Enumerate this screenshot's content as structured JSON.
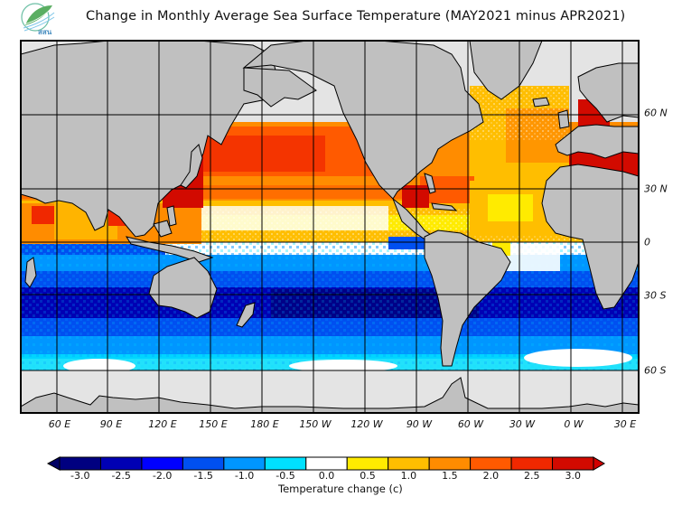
{
  "header": {
    "title": "Change in Monthly Average Sea Surface Temperature (MAY2021 minus APR2021)",
    "logo_text": "สสน"
  },
  "map": {
    "longitude_labels": [
      "60 E",
      "90 E",
      "120 E",
      "150 E",
      "180 E",
      "150 W",
      "120 W",
      "90 W",
      "60 W",
      "30 W",
      "0 W",
      "30 E"
    ],
    "latitude_labels": [
      "60 N",
      "30 N",
      "0",
      "30 S",
      "60 S"
    ],
    "colors": {
      "land": "#c0c0c0",
      "ice": "#e4e4e4",
      "border": "#000000"
    }
  },
  "legend": {
    "title": "Temperature change  (c)",
    "ticks": [
      "-3.0",
      "-2.5",
      "-2.0",
      "-1.5",
      "-1.0",
      "-0.5",
      "0.0",
      "0.5",
      "1.0",
      "1.5",
      "2.0",
      "2.5",
      "3.0"
    ],
    "bins": [
      {
        "color": "#000080"
      },
      {
        "color": "#0000b4"
      },
      {
        "color": "#0000ff"
      },
      {
        "color": "#0050f0"
      },
      {
        "color": "#0096ff"
      },
      {
        "color": "#00e1ff"
      },
      {
        "color": "#ffffff"
      },
      {
        "color": "#ffeb00"
      },
      {
        "color": "#ffbe00"
      },
      {
        "color": "#ff8c00"
      },
      {
        "color": "#ff5a00"
      },
      {
        "color": "#f02800"
      },
      {
        "color": "#d20a00"
      }
    ],
    "under_color": "#000064",
    "over_color": "#d20000"
  }
}
